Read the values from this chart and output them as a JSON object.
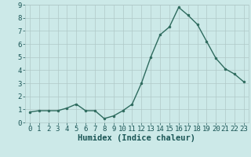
{
  "x": [
    0,
    1,
    2,
    3,
    4,
    5,
    6,
    7,
    8,
    9,
    10,
    11,
    12,
    13,
    14,
    15,
    16,
    17,
    18,
    19,
    20,
    21,
    22,
    23
  ],
  "y": [
    0.8,
    0.9,
    0.9,
    0.9,
    1.1,
    1.4,
    0.9,
    0.9,
    0.3,
    0.5,
    0.9,
    1.4,
    3.0,
    5.0,
    6.7,
    7.3,
    8.8,
    8.2,
    7.5,
    6.2,
    4.9,
    4.1,
    3.7,
    3.1
  ],
  "line_color": "#2e6b5e",
  "marker": "o",
  "marker_size": 2.0,
  "line_width": 1.0,
  "bg_color": "#cce9e8",
  "grid_color": "#b0c8c8",
  "xlabel": "Humidex (Indice chaleur)",
  "xlabel_fontsize": 7.5,
  "ylim": [
    0,
    9
  ],
  "xlim": [
    -0.5,
    23.5
  ],
  "yticks": [
    0,
    1,
    2,
    3,
    4,
    5,
    6,
    7,
    8,
    9
  ],
  "xticks": [
    0,
    1,
    2,
    3,
    4,
    5,
    6,
    7,
    8,
    9,
    10,
    11,
    12,
    13,
    14,
    15,
    16,
    17,
    18,
    19,
    20,
    21,
    22,
    23
  ],
  "tick_fontsize": 6.5
}
